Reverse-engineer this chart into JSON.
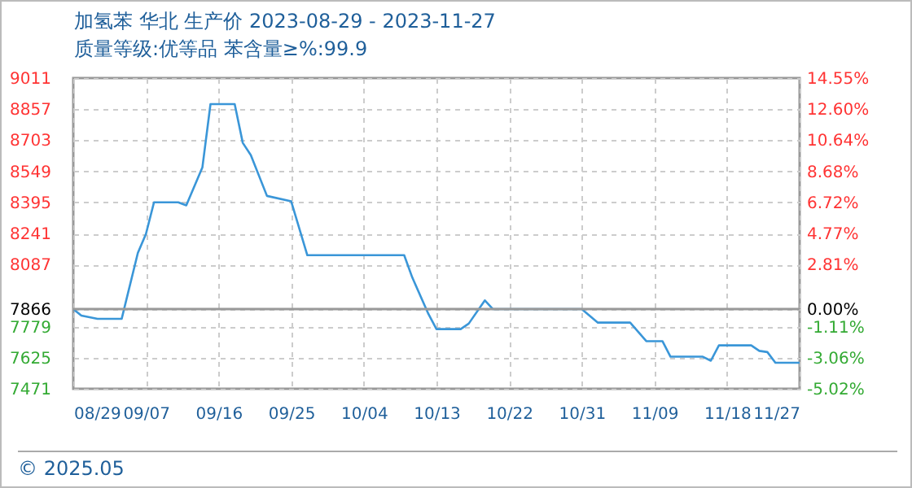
{
  "chart_data": {
    "type": "line",
    "title": "加氢苯 华北 生产价 2023-08-29 - 2023-11-27",
    "subtitle": "质量等级:优等品 苯含量≥%:99.9",
    "annotations": [
      "© 2025.05"
    ],
    "x": [
      "2023-08-29",
      "2023-08-30",
      "2023-09-01",
      "2023-09-04",
      "2023-09-06",
      "2023-09-07",
      "2023-09-08",
      "2023-09-11",
      "2023-09-12",
      "2023-09-14",
      "2023-09-15",
      "2023-09-18",
      "2023-09-19",
      "2023-09-20",
      "2023-09-22",
      "2023-09-25",
      "2023-09-27",
      "2023-10-09",
      "2023-10-10",
      "2023-10-12",
      "2023-10-13",
      "2023-10-16",
      "2023-10-17",
      "2023-10-19",
      "2023-10-20",
      "2023-10-31",
      "2023-11-02",
      "2023-11-06",
      "2023-11-08",
      "2023-11-10",
      "2023-11-11",
      "2023-11-15",
      "2023-11-16",
      "2023-11-17",
      "2023-11-21",
      "2023-11-22",
      "2023-11-23",
      "2023-11-24",
      "2023-11-27"
    ],
    "series": [
      {
        "color": "#3a96d8",
        "values": [
          7866,
          7834,
          7818,
          7818,
          8144,
          8238,
          8395,
          8395,
          8380,
          8569,
          8882,
          8882,
          8690,
          8629,
          8427,
          8400,
          8133,
          8133,
          8023,
          7842,
          7767,
          7767,
          7794,
          7909,
          7866,
          7866,
          7799,
          7799,
          7707,
          7707,
          7630,
          7630,
          7610,
          7686,
          7686,
          7659,
          7653,
          7600,
          7600
        ]
      }
    ],
    "xlim": [
      "2023-08-29",
      "2023-11-27"
    ],
    "xticks": [
      {
        "value": "2023-08-29",
        "label": "08/29"
      },
      {
        "value": "2023-09-07",
        "label": "09/07"
      },
      {
        "value": "2023-09-16",
        "label": "09/16"
      },
      {
        "value": "2023-09-25",
        "label": "09/25"
      },
      {
        "value": "2023-10-04",
        "label": "10/04"
      },
      {
        "value": "2023-10-13",
        "label": "10/13"
      },
      {
        "value": "2023-10-22",
        "label": "10/22"
      },
      {
        "value": "2023-10-31",
        "label": "10/31"
      },
      {
        "value": "2023-11-09",
        "label": "11/09"
      },
      {
        "value": "2023-11-18",
        "label": "11/18"
      },
      {
        "value": "2023-11-27",
        "label": "11/27"
      }
    ],
    "ylim": [
      7471,
      9011
    ],
    "yticks": [
      7471,
      7625,
      7779,
      7866,
      8087,
      8241,
      8395,
      8549,
      8703,
      8857,
      9011
    ],
    "y2lim": [
      -5.02,
      14.55
    ],
    "y2ticks": [
      {
        "value": -5.02,
        "label": "-5.02%"
      },
      {
        "value": -3.06,
        "label": "-3.06%"
      },
      {
        "value": -1.11,
        "label": "-1.11%"
      },
      {
        "value": 0,
        "label": "0.00%"
      },
      {
        "value": 2.81,
        "label": "2.81%"
      },
      {
        "value": 4.77,
        "label": "4.77%"
      },
      {
        "value": 6.72,
        "label": "6.72%"
      },
      {
        "value": 8.68,
        "label": "8.68%"
      },
      {
        "value": 10.64,
        "label": "10.64%"
      },
      {
        "value": 12.6,
        "label": "12.60%"
      },
      {
        "value": 14.55,
        "label": "14.55%"
      }
    ],
    "ref_lines": [
      {
        "axis": "y",
        "value": 7866,
        "color": "#999999"
      }
    ],
    "grid": true,
    "marker": "none",
    "line_style": "solid"
  }
}
